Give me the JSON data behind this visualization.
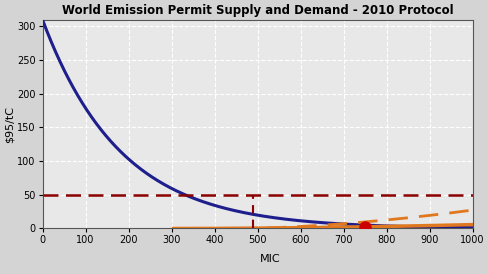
{
  "title": "World Emission Permit Supply and Demand - 2010 Protocol",
  "xlabel_mic": "MIC",
  "ylabel": "$95/tC",
  "xlim": [
    0,
    1000
  ],
  "ylim": [
    0,
    310
  ],
  "yticks": [
    0,
    50,
    100,
    150,
    200,
    250,
    300
  ],
  "xticks": [
    0,
    100,
    200,
    300,
    400,
    500,
    600,
    700,
    800,
    900,
    1000
  ],
  "background_color": "#d4d4d4",
  "plot_bg_color": "#e8e8e8",
  "grid_color": "#ffffff",
  "demand_color": "#1e1e8c",
  "supply_solid_color": "#e07820",
  "supply_dashed_color": "#e07820",
  "hline_color": "#8b0000",
  "dot_color": "#cc0000",
  "dot_x": 750,
  "dot_y": 2,
  "hline_y": 50,
  "vline_x": 490,
  "demand_A": 310,
  "demand_k": 0.0055,
  "supply_solid_x0": 305,
  "supply_solid_x1": 1000,
  "supply_solid_y0": 0,
  "supply_solid_y1": 310,
  "supply_solid_scale": 3.2e-05,
  "supply_solid_power": 1.85,
  "supply_dashed_x0": 450,
  "supply_dashed_scale": 0.0006,
  "supply_dashed_power": 1.7
}
